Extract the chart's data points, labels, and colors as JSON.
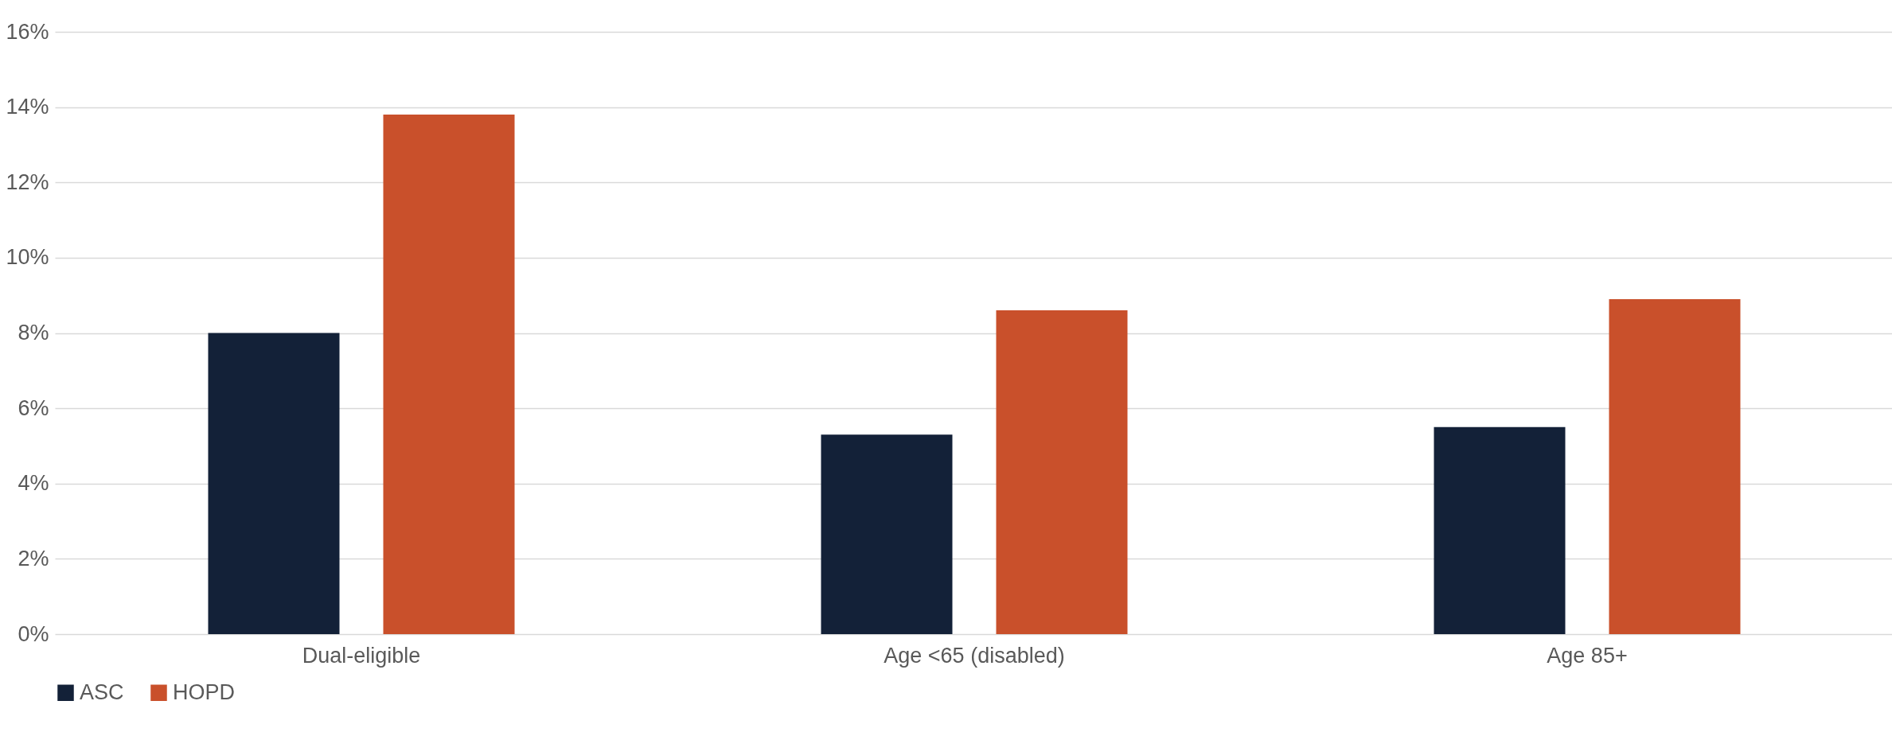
{
  "chart_data": {
    "type": "bar",
    "categories": [
      "Dual-eligible",
      "Age <65 (disabled)",
      "Age 85+"
    ],
    "series": [
      {
        "name": "ASC",
        "color": "#132138",
        "values": [
          8.0,
          5.3,
          5.5
        ]
      },
      {
        "name": "HOPD",
        "color": "#c9502b",
        "values": [
          13.8,
          8.6,
          8.9
        ]
      }
    ],
    "ylim": [
      0,
      16
    ],
    "yticks": [
      {
        "value": 0,
        "label": "0%"
      },
      {
        "value": 2,
        "label": "2%"
      },
      {
        "value": 4,
        "label": "4%"
      },
      {
        "value": 6,
        "label": "6%"
      },
      {
        "value": 8,
        "label": "8%"
      },
      {
        "value": 10,
        "label": "10%"
      },
      {
        "value": 12,
        "label": "12%"
      },
      {
        "value": 14,
        "label": "14%"
      },
      {
        "value": 16,
        "label": "16%"
      }
    ],
    "grid": "y",
    "legend": "bottom"
  }
}
